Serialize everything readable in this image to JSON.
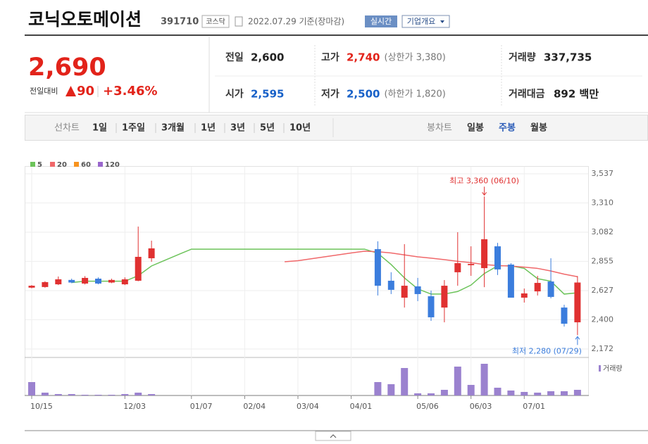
{
  "header": {
    "name": "코닉오토메이션",
    "code": "391710",
    "market": "코스닥",
    "date": "2022.07.29 기준(장마감)",
    "realtime": "실시간",
    "company_info": "기업개요"
  },
  "price": {
    "current": "2,690",
    "change_label": "전일대비",
    "change": "90",
    "change_rate": "+3.46%",
    "color": "#e2231a"
  },
  "summary": {
    "rows": [
      [
        {
          "label": "전일",
          "value": "2,600",
          "color": "#222222"
        },
        {
          "label": "고가",
          "value": "2,740",
          "note": "(상한가 3,380)",
          "color": "#e2231a"
        },
        {
          "label": "거래량",
          "value": "337,735",
          "color": "#222222"
        }
      ],
      [
        {
          "label": "시가",
          "value": "2,595",
          "color": "#1861c8"
        },
        {
          "label": "저가",
          "value": "2,500",
          "note": "(하한가 1,820)",
          "color": "#1861c8"
        },
        {
          "label": "거래대금",
          "value": "892 백만",
          "color": "#222222"
        }
      ]
    ]
  },
  "tabs": {
    "line_label": "선차트",
    "line_periods": [
      "1일",
      "1주일",
      "3개월",
      "1년",
      "3년",
      "5년",
      "10년"
    ],
    "candle_label": "봉차트",
    "candle_periods": [
      "일봉",
      "주봉",
      "월봉"
    ],
    "selected": 1
  },
  "chart_data": {
    "type": "candlestick",
    "categories": [
      "10/15",
      null,
      null,
      null,
      null,
      null,
      null,
      "12/03",
      null,
      null,
      null,
      null,
      "01/07",
      null,
      null,
      null,
      "02/04",
      null,
      null,
      null,
      "03/04",
      null,
      null,
      null,
      "04/01",
      null,
      null,
      null,
      null,
      "05/06",
      null,
      null,
      null,
      "06/03",
      null,
      null,
      null,
      "07/01",
      null,
      null,
      null,
      null
    ],
    "open": [
      2650,
      2655,
      2676,
      2710,
      2682,
      2720,
      2690,
      2676,
      2704,
      2879,
      null,
      null,
      null,
      null,
      null,
      null,
      null,
      null,
      null,
      null,
      null,
      null,
      null,
      null,
      null,
      null,
      2950,
      2704,
      2572,
      2660,
      2583,
      2495,
      2770,
      2825,
      2802,
      2972,
      2830,
      2572,
      2621,
      2698,
      2495,
      2380
    ],
    "high": [
      2670,
      2700,
      2737,
      2720,
      2740,
      2730,
      2720,
      2730,
      3126,
      3016,
      null,
      null,
      null,
      null,
      null,
      null,
      null,
      null,
      null,
      null,
      null,
      null,
      null,
      null,
      null,
      null,
      3011,
      2770,
      2989,
      2726,
      2627,
      2709,
      3082,
      2972,
      3360,
      2999,
      2841,
      2643,
      2742,
      2879,
      2517,
      2740
    ],
    "low": [
      2645,
      2650,
      2670,
      2685,
      2675,
      2676,
      2685,
      2670,
      2700,
      2852,
      null,
      null,
      null,
      null,
      null,
      null,
      null,
      null,
      null,
      null,
      null,
      null,
      null,
      null,
      null,
      null,
      2589,
      2600,
      2495,
      2545,
      2391,
      2380,
      2665,
      2742,
      2654,
      2748,
      2572,
      2534,
      2589,
      2567,
      2347,
      2280
    ],
    "close": [
      2665,
      2693,
      2715,
      2690,
      2726,
      2682,
      2710,
      2715,
      2890,
      2956,
      null,
      null,
      null,
      null,
      null,
      null,
      null,
      null,
      null,
      null,
      null,
      null,
      null,
      null,
      null,
      null,
      2665,
      2633,
      2665,
      2600,
      2419,
      2665,
      2841,
      2835,
      3027,
      2792,
      2572,
      2605,
      2687,
      2578,
      2369,
      2690
    ],
    "up_color": "#e03131",
    "down_color": "#3b7ddd",
    "ylim": [
      2172,
      3537
    ],
    "yticks": [
      {
        "value": 2172,
        "label": "2,172"
      },
      {
        "value": 2400,
        "label": "2,400"
      },
      {
        "value": 2627,
        "label": "2,627"
      },
      {
        "value": 2855,
        "label": "2,855"
      },
      {
        "value": 3082,
        "label": "3,082"
      },
      {
        "value": 3310,
        "label": "3,310"
      },
      {
        "value": 3537,
        "label": "3,537"
      }
    ],
    "grid": true,
    "series": [
      {
        "name": "5",
        "color": "#6cc35a",
        "values": [
          null,
          null,
          null,
          2690,
          2700,
          2700,
          2700,
          2700,
          2743,
          2819,
          2863,
          2907,
          2950,
          2950,
          2950,
          2950,
          2950,
          2950,
          2950,
          2950,
          2950,
          2950,
          2950,
          2950,
          2950,
          2950,
          2918,
          2830,
          2726,
          2640,
          2600,
          2600,
          2620,
          2670,
          2760,
          2820,
          2820,
          2800,
          2720,
          2700,
          2600,
          2610
        ]
      },
      {
        "name": "20",
        "color": "#f0686a",
        "values": [
          null,
          null,
          null,
          null,
          null,
          null,
          null,
          null,
          null,
          null,
          null,
          null,
          null,
          null,
          null,
          null,
          null,
          null,
          null,
          2852,
          2860,
          2875,
          2890,
          2905,
          2920,
          2934,
          2930,
          2920,
          2905,
          2890,
          2880,
          2868,
          2855,
          2845,
          2830,
          2822,
          2818,
          2810,
          2800,
          2780,
          2755,
          2735
        ]
      },
      {
        "name": "60",
        "color": "#f7931e"
      },
      {
        "name": "120",
        "color": "#9966cc"
      }
    ],
    "volume": {
      "name": "거래량",
      "color": "#9b82cf",
      "values": [
        19,
        4,
        2,
        2,
        1,
        1,
        1,
        2,
        4,
        2,
        null,
        null,
        null,
        null,
        null,
        null,
        null,
        null,
        null,
        null,
        null,
        null,
        null,
        null,
        null,
        null,
        19,
        16,
        39,
        3,
        3,
        8,
        41,
        15,
        45,
        11,
        7,
        5,
        4,
        6,
        6,
        8
      ],
      "vlim": [
        0,
        50
      ]
    },
    "high_label": "최고 3,360 (06/10)",
    "low_label": "최저 2,280 (07/29)"
  }
}
